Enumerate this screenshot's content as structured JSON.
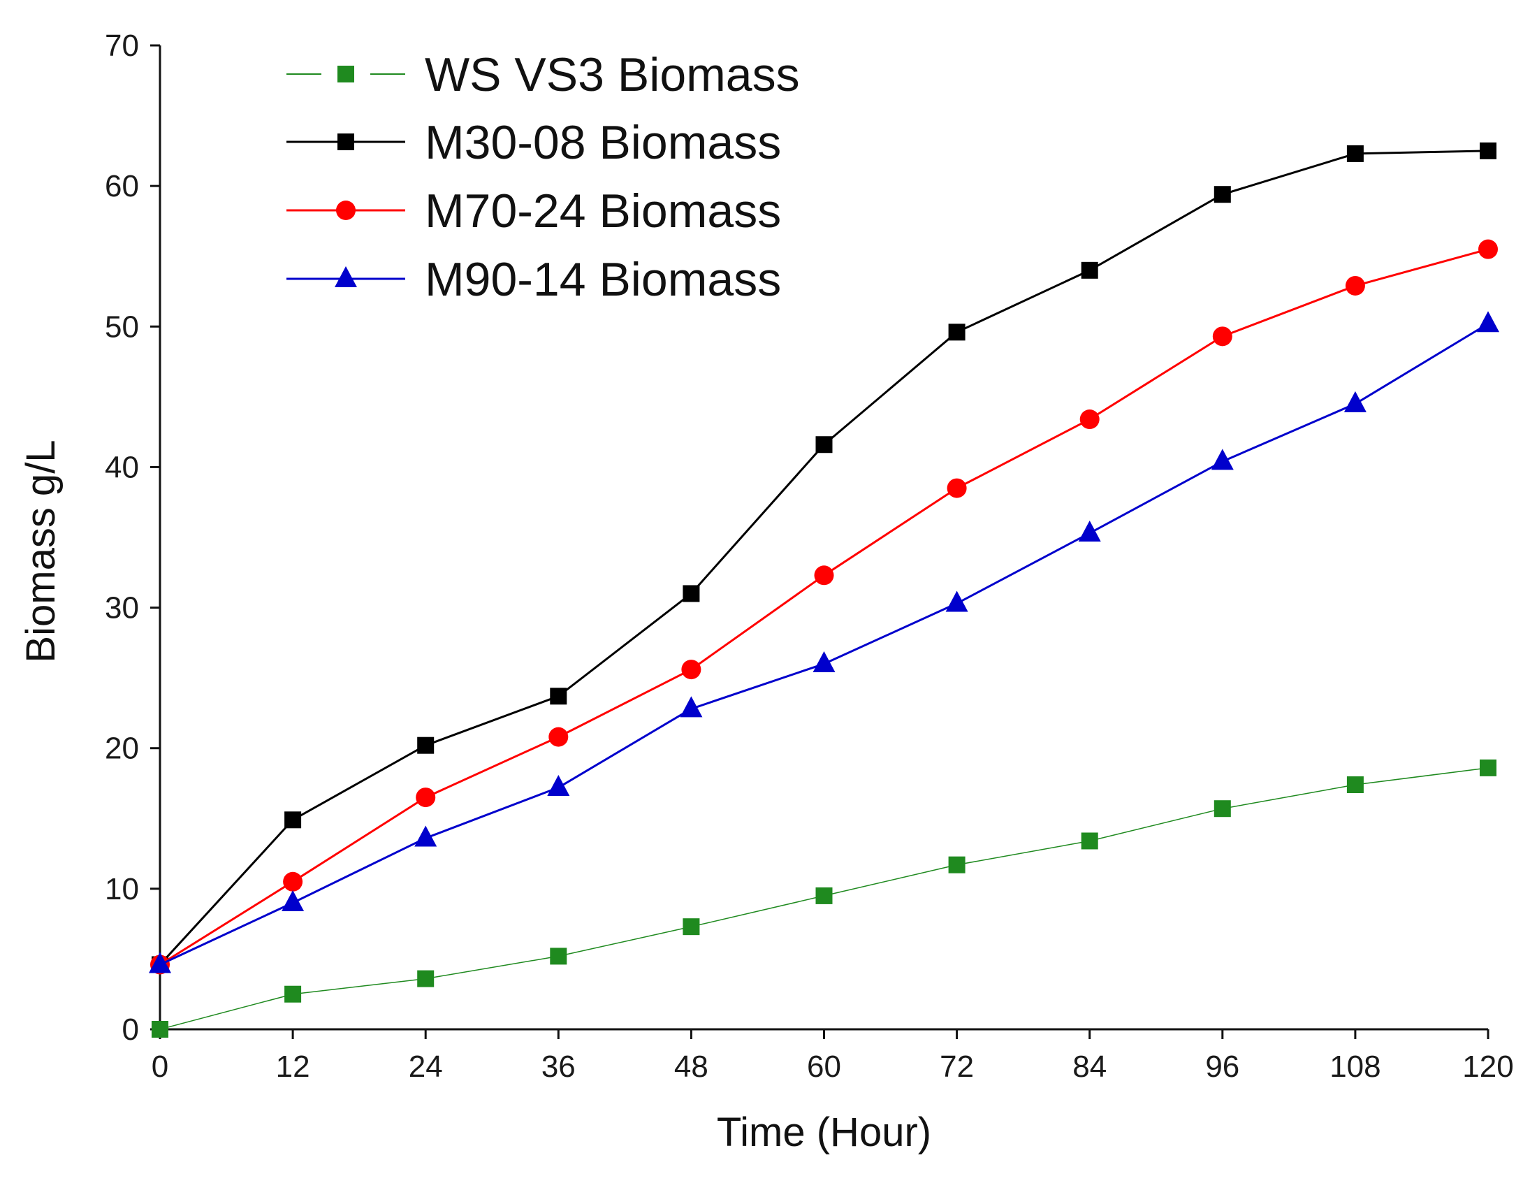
{
  "chart_data": {
    "type": "line",
    "title": "",
    "xlabel": "Time (Hour)",
    "ylabel": "Biomass g/L",
    "x": [
      0,
      12,
      24,
      36,
      48,
      60,
      72,
      84,
      96,
      108,
      120
    ],
    "xlim": [
      0,
      120
    ],
    "ylim": [
      0,
      70
    ],
    "xticks": [
      "0",
      "12",
      "24",
      "36",
      "48",
      "60",
      "72",
      "84",
      "96",
      "108",
      "120"
    ],
    "yticks": [
      "0",
      "10",
      "20",
      "30",
      "40",
      "50",
      "60",
      "70"
    ],
    "grid": false,
    "legend_position": "top-left",
    "series": [
      {
        "name": "WS VS3 Biomass",
        "color": "#1f8a1f",
        "marker": "square",
        "line_style": "dashed-thin",
        "values": [
          0.0,
          2.5,
          3.6,
          5.2,
          7.3,
          9.5,
          11.7,
          13.4,
          15.7,
          17.4,
          18.6
        ]
      },
      {
        "name": "M30-08 Biomass",
        "color": "#000000",
        "marker": "square",
        "line_style": "solid",
        "values": [
          4.6,
          14.9,
          20.2,
          23.7,
          31.0,
          41.6,
          49.6,
          54.0,
          59.4,
          62.3,
          62.5
        ]
      },
      {
        "name": "M70-24 Biomass",
        "color": "#ff0000",
        "marker": "circle",
        "line_style": "solid",
        "values": [
          4.6,
          10.5,
          16.5,
          20.8,
          25.6,
          32.3,
          38.5,
          43.4,
          49.3,
          52.9,
          55.5
        ]
      },
      {
        "name": "M90-14 Biomass",
        "color": "#0000cc",
        "marker": "triangle",
        "line_style": "solid",
        "values": [
          4.6,
          9.0,
          13.6,
          17.2,
          22.8,
          26.0,
          30.3,
          35.3,
          40.4,
          44.5,
          50.2
        ]
      }
    ]
  }
}
